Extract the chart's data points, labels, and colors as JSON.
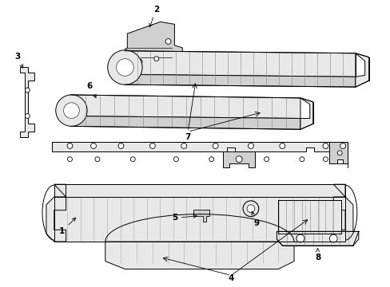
{
  "bg_color": "#ffffff",
  "line_color": "#000000",
  "figsize": [
    4.89,
    3.6
  ],
  "dpi": 100,
  "lw": 0.7,
  "gray_fill": "#e8e8e8",
  "gray_mid": "#d0d0d0",
  "gray_dark": "#b0b0b0",
  "rib_color": "#888888",
  "label_fontsize": 7.5
}
